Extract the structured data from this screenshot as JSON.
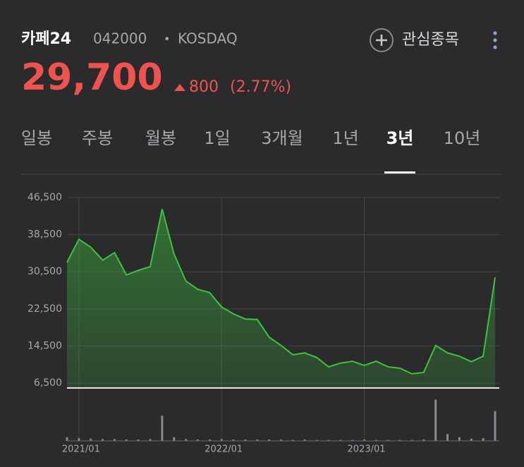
{
  "header": {
    "name": "카페24",
    "code": "042000",
    "separator": "•",
    "market": "KOSDAQ",
    "watch": "관심종목",
    "price": "29,700",
    "change": "800",
    "change_rate": "(2.77%)"
  },
  "tabs": [
    "일봉",
    "주봉",
    "월봉",
    "1일",
    "3개월",
    "1년",
    "3년",
    "10년"
  ],
  "selected_tab": 6,
  "chart_data": {
    "type": "area",
    "color": "#3cc43c",
    "x": [
      "2020/12",
      "2021/01",
      "2021/02",
      "2021/03",
      "2021/04",
      "2021/05",
      "2021/06",
      "2021/07",
      "2021/08",
      "2021/09",
      "2021/10",
      "2021/11",
      "2021/12",
      "2022/01",
      "2022/02",
      "2022/03",
      "2022/04",
      "2022/05",
      "2022/06",
      "2022/07",
      "2022/08",
      "2022/09",
      "2022/10",
      "2022/11",
      "2022/12",
      "2023/01",
      "2023/02",
      "2023/03",
      "2023/04",
      "2023/05",
      "2023/06",
      "2023/07",
      "2023/08",
      "2023/09",
      "2023/10",
      "2023/11",
      "2023/12"
    ],
    "values": [
      32500,
      37500,
      35800,
      33000,
      34600,
      29800,
      30800,
      31600,
      44000,
      34300,
      28500,
      26700,
      26000,
      22900,
      21400,
      20300,
      20200,
      16400,
      14600,
      12600,
      13000,
      12000,
      10000,
      10800,
      11200,
      10300,
      11200,
      10000,
      9700,
      8500,
      8800,
      14600,
      13000,
      12300,
      11100,
      12300,
      29300
    ],
    "volume": [
      8,
      6,
      5,
      4,
      4,
      3,
      3,
      4,
      55,
      8,
      4,
      3,
      3,
      4,
      3,
      3,
      3,
      3,
      3,
      2,
      3,
      2,
      2,
      2,
      2,
      3,
      2,
      2,
      2,
      2,
      3,
      90,
      15,
      8,
      5,
      6,
      65
    ],
    "volume_lim": [
      0,
      100
    ],
    "xlim": [
      "2020/12",
      "2023/12"
    ],
    "xticks": [
      "2021/01",
      "2022/01",
      "2023/01"
    ],
    "ylim": [
      6500,
      46500
    ],
    "yticks": [
      {
        "value": 46500,
        "label": "46,500"
      },
      {
        "value": 38500,
        "label": "38,500"
      },
      {
        "value": 30500,
        "label": "30,500"
      },
      {
        "value": 22500,
        "label": "22,500"
      },
      {
        "value": 14500,
        "label": "14,500"
      },
      {
        "value": 6500,
        "label": "6,500"
      }
    ],
    "grid": true
  }
}
